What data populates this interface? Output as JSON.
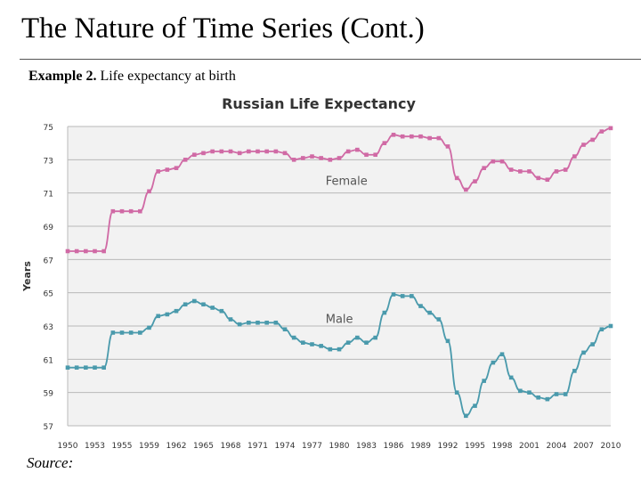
{
  "slide": {
    "title": "The Nature of Time Series (Cont.)",
    "subtitle_bold": "Example 2.",
    "subtitle_rest": " Life expectancy at birth",
    "source_label": "Source:"
  },
  "colors": {
    "female": "#d06aa5",
    "male": "#4a9aac",
    "grid": "#b8b8b8",
    "plot_bg": "#f2f2f2"
  },
  "chart_data": {
    "type": "line",
    "title": "Russian Life Expectancy",
    "xlabel": "",
    "ylabel": "Years",
    "ylim": [
      57,
      75
    ],
    "yticks": [
      57,
      59,
      61,
      63,
      65,
      67,
      69,
      71,
      73,
      75
    ],
    "xlim": [
      1950,
      2010
    ],
    "xtick_labels": [
      "1950",
      "1953",
      "1955",
      "1959",
      "1962",
      "1965",
      "1968",
      "1971",
      "1974",
      "1977",
      "1980",
      "1983",
      "1986",
      "1989",
      "1992",
      "1995",
      "1998",
      "2001",
      "2004",
      "2007",
      "2010"
    ],
    "x": [
      1950,
      1951,
      1952,
      1953,
      1954,
      1955,
      1956,
      1957,
      1958,
      1959,
      1960,
      1961,
      1962,
      1963,
      1964,
      1965,
      1966,
      1967,
      1968,
      1969,
      1970,
      1971,
      1972,
      1973,
      1974,
      1975,
      1976,
      1977,
      1978,
      1979,
      1980,
      1981,
      1982,
      1983,
      1984,
      1985,
      1986,
      1987,
      1988,
      1989,
      1990,
      1991,
      1992,
      1993,
      1994,
      1995,
      1996,
      1997,
      1998,
      1999,
      2000,
      2001,
      2002,
      2003,
      2004,
      2005,
      2006,
      2007,
      2008,
      2009,
      2010
    ],
    "series": [
      {
        "name": "Female",
        "values": [
          67.5,
          67.5,
          67.5,
          67.5,
          67.5,
          69.9,
          69.9,
          69.9,
          69.9,
          71.1,
          72.3,
          72.4,
          72.5,
          73.0,
          73.3,
          73.4,
          73.5,
          73.5,
          73.5,
          73.4,
          73.5,
          73.5,
          73.5,
          73.5,
          73.4,
          73.0,
          73.1,
          73.2,
          73.1,
          73.0,
          73.1,
          73.5,
          73.6,
          73.3,
          73.3,
          74.0,
          74.5,
          74.4,
          74.4,
          74.4,
          74.3,
          74.3,
          73.8,
          71.9,
          71.2,
          71.7,
          72.5,
          72.9,
          72.9,
          72.4,
          72.3,
          72.3,
          71.9,
          71.8,
          72.3,
          72.4,
          73.2,
          73.9,
          74.2,
          74.7,
          74.9
        ]
      },
      {
        "name": "Male",
        "values": [
          60.5,
          60.5,
          60.5,
          60.5,
          60.5,
          62.6,
          62.6,
          62.6,
          62.6,
          62.9,
          63.6,
          63.7,
          63.9,
          64.3,
          64.5,
          64.3,
          64.1,
          63.9,
          63.4,
          63.1,
          63.2,
          63.2,
          63.2,
          63.2,
          62.8,
          62.3,
          62.0,
          61.9,
          61.8,
          61.6,
          61.6,
          62.0,
          62.3,
          62.0,
          62.3,
          63.8,
          64.9,
          64.8,
          64.8,
          64.2,
          63.8,
          63.4,
          62.1,
          59.0,
          57.6,
          58.2,
          59.7,
          60.8,
          61.3,
          59.9,
          59.1,
          59.0,
          58.7,
          58.6,
          58.9,
          58.9,
          60.3,
          61.4,
          61.9,
          62.8,
          63.0
        ]
      }
    ]
  }
}
